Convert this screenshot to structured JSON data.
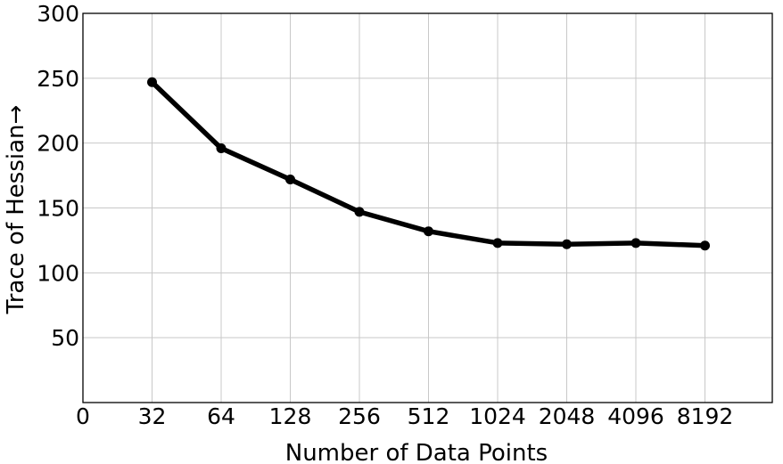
{
  "chart_data": {
    "type": "line",
    "title": "",
    "xlabel": "Number of Data Points",
    "ylabel": "Trace of Hessian→",
    "x_tick_labels": [
      "0",
      "32",
      "64",
      "128",
      "256",
      "512",
      "1024",
      "2048",
      "4096",
      "8192"
    ],
    "categories": [
      "32",
      "64",
      "128",
      "256",
      "512",
      "1024",
      "2048",
      "4096",
      "8192"
    ],
    "ylim": [
      0,
      300
    ],
    "y_ticks": [
      50,
      100,
      150,
      200,
      250,
      300
    ],
    "y_tick_labels": [
      "50",
      "100",
      "150",
      "200",
      "250",
      "300"
    ],
    "grid": true,
    "series": [
      {
        "color": "#000000",
        "values": [
          247,
          196,
          172,
          147,
          132,
          123,
          122,
          123,
          121
        ]
      }
    ]
  }
}
